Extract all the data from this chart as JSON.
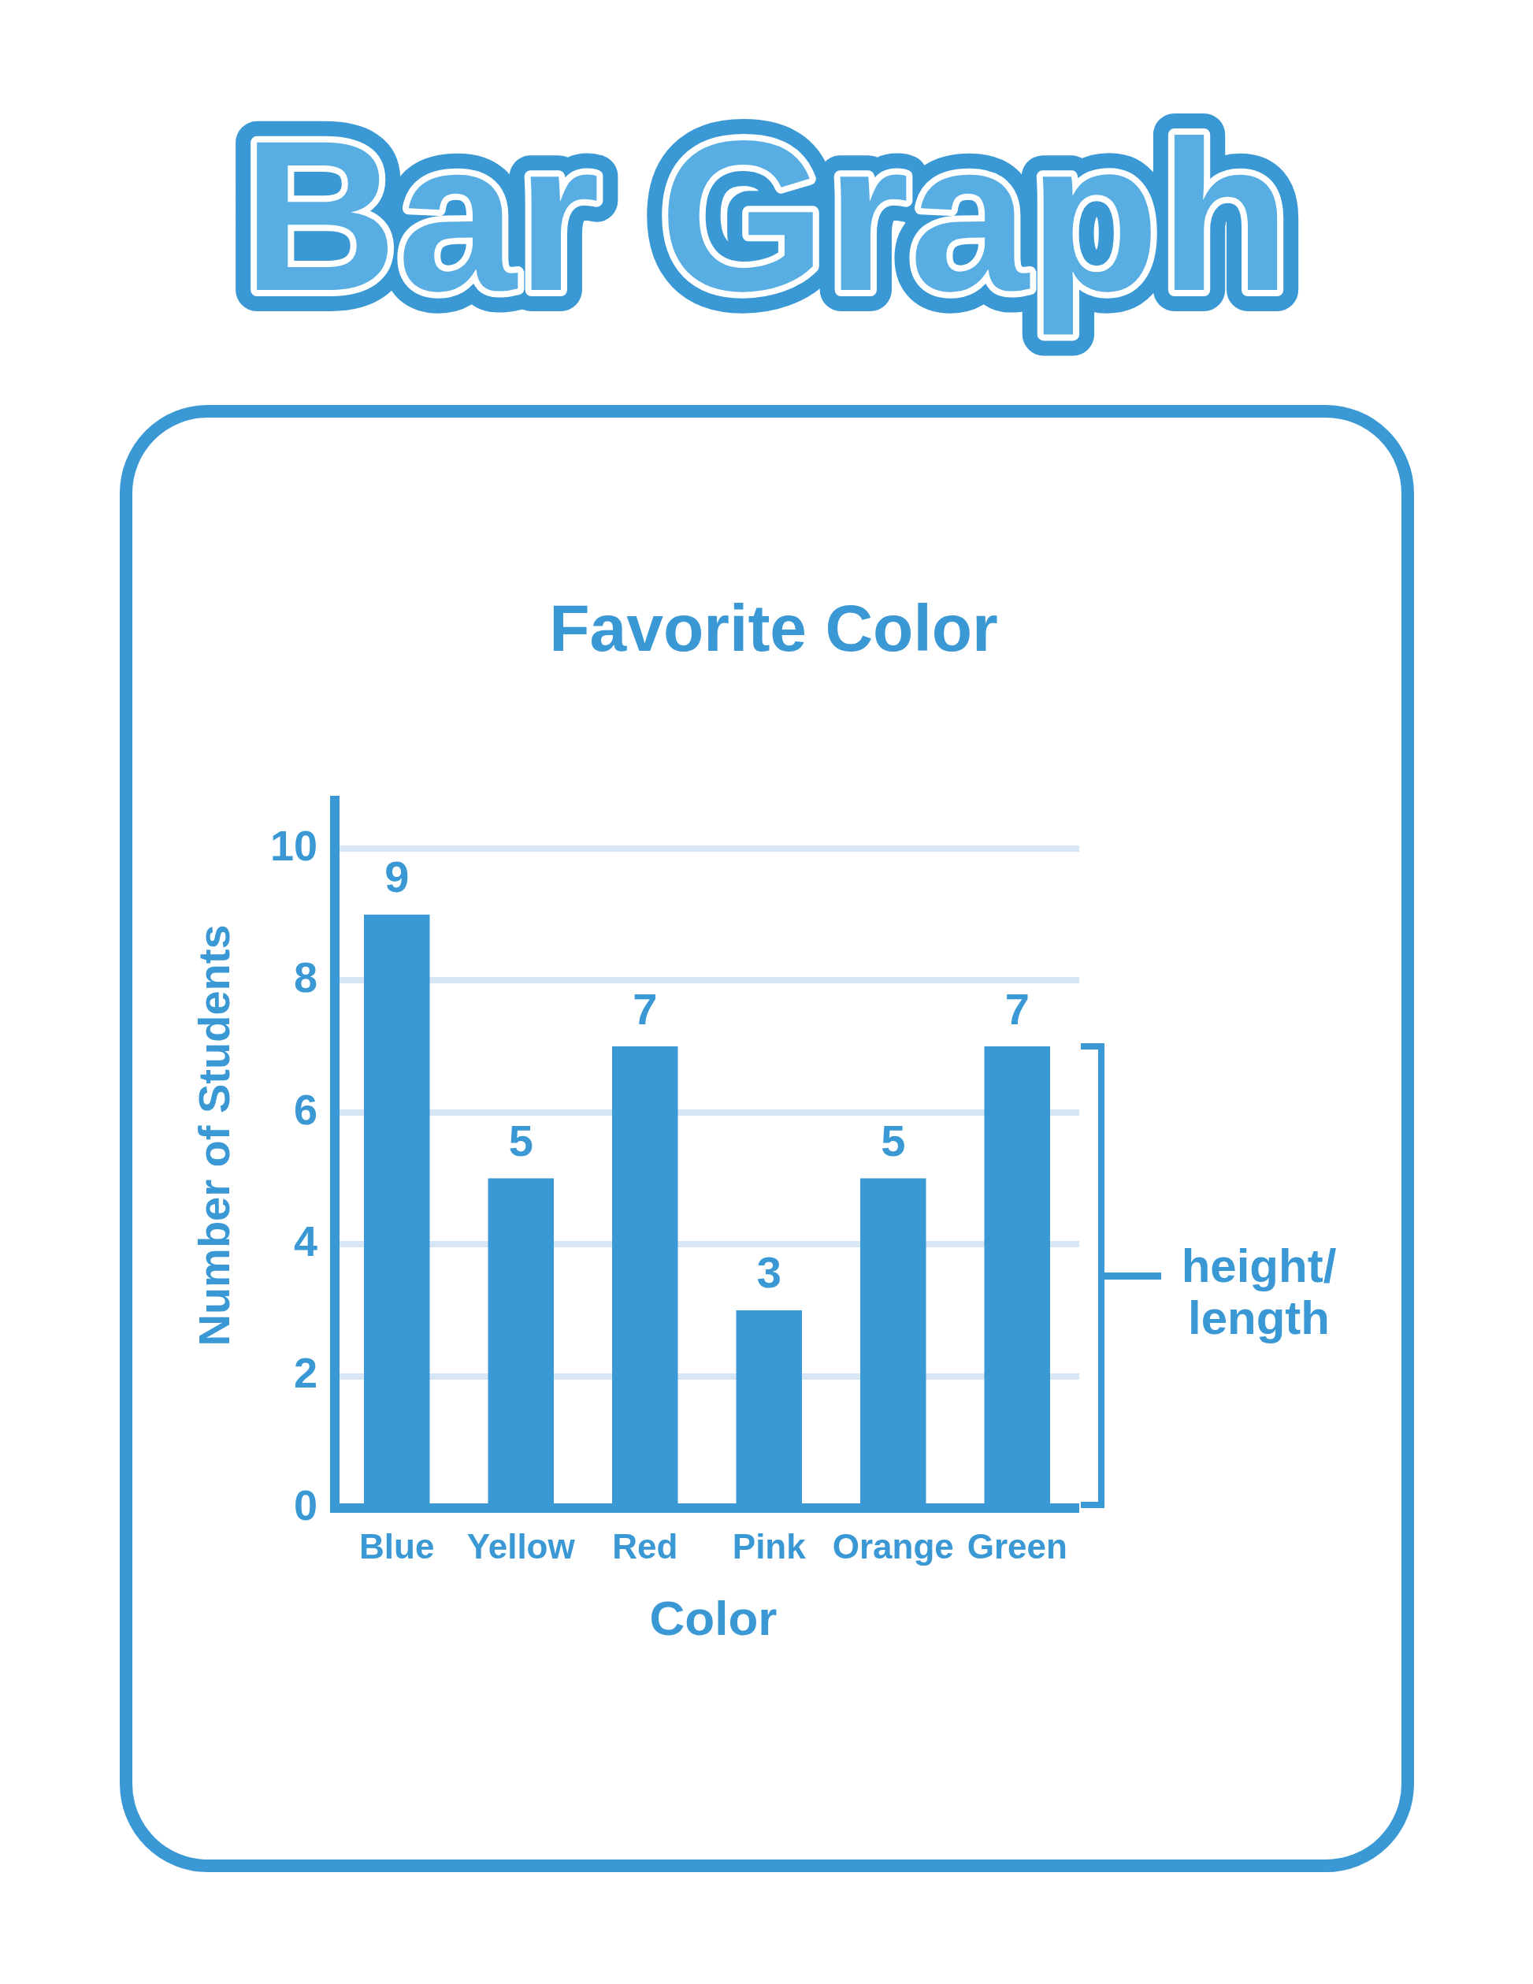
{
  "chart_data": {
    "type": "bar",
    "title": "Bar Graph",
    "subtitle": "Favorite Color",
    "xlabel": "Color",
    "ylabel": "Number of Students",
    "categories": [
      "Blue",
      "Yellow",
      "Red",
      "Pink",
      "Orange",
      "Green"
    ],
    "values": [
      9,
      5,
      7,
      3,
      5,
      7
    ],
    "color": "#3a98d4",
    "ylim": [
      0,
      10.8
    ],
    "yticks": [
      0,
      2,
      4,
      6,
      8,
      10
    ],
    "grid": "y",
    "data_labels": true,
    "annotations": [
      "height/ length"
    ]
  }
}
